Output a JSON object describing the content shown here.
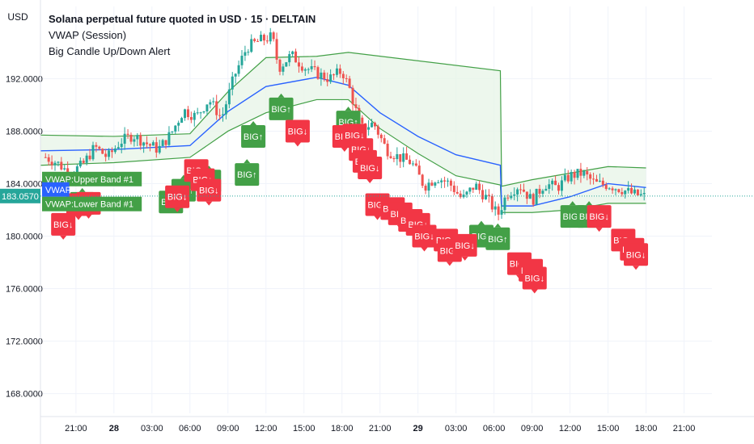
{
  "header": {
    "currency": "USD",
    "title": "Solana perpetual future quoted in USD · 15 · DELTAIN",
    "indicator_1": "VWAP (Session)",
    "indicator_2": "Big Candle Up/Down Alert"
  },
  "colors": {
    "up": "#26a69a",
    "down": "#ef5350",
    "vwap": "#2962ff",
    "band": "#43a047",
    "band_fill": "#e8f5e9",
    "big_up": "#43a047",
    "big_down": "#f23645",
    "grid": "#f0f3fa",
    "price_tag": "#26a69a"
  },
  "labels": {
    "upper_band": "VWAP:Upper Band #1",
    "vwap": "VWAP",
    "lower_band": "VWAP:Lower Band #1",
    "big_up": "BIG↑",
    "big_down": "BIG↓"
  },
  "chart_data": {
    "type": "candlestick",
    "title": "Solana perpetual future quoted in USD · 15 · DELTAIN",
    "ylim": [
      166.5,
      197.5
    ],
    "y_ticks": [
      "192.0000",
      "188.0000",
      "184.0000",
      "180.0000",
      "176.0000",
      "172.0000",
      "168.0000"
    ],
    "x_ticks": [
      "21:00",
      "28",
      "03:00",
      "06:00",
      "09:00",
      "12:00",
      "15:00",
      "18:00",
      "21:00",
      "29",
      "03:00",
      "06:00",
      "09:00",
      "12:00",
      "15:00",
      "18:00",
      "21:00"
    ],
    "x_tick_values": [
      21,
      24,
      27,
      30,
      33,
      36,
      39,
      42,
      45,
      48,
      51,
      54,
      57,
      60,
      63,
      66,
      69
    ],
    "xlim": [
      18.2,
      71.2
    ],
    "last_price": "183.0570",
    "last_price_value": 183.057,
    "close_path": [
      [
        18.2,
        186.2
      ],
      [
        19.5,
        185.6
      ],
      [
        20.5,
        184.8
      ],
      [
        21.5,
        185.4
      ],
      [
        22.5,
        186.8
      ],
      [
        23.5,
        186.0
      ],
      [
        24.5,
        187.2
      ],
      [
        25.5,
        187.7
      ],
      [
        26.5,
        187.1
      ],
      [
        27.5,
        186.6
      ],
      [
        28.5,
        187.8
      ],
      [
        29.5,
        189.6
      ],
      [
        30.5,
        189.1
      ],
      [
        31.5,
        190.4
      ],
      [
        32.5,
        189.0
      ],
      [
        33.5,
        192.2
      ],
      [
        34.5,
        194.4
      ],
      [
        35.5,
        194.9
      ],
      [
        36.5,
        195.2
      ],
      [
        37.0,
        192.8
      ],
      [
        38.0,
        193.8
      ],
      [
        39.0,
        192.9
      ],
      [
        40.0,
        192.4
      ],
      [
        41.0,
        192.0
      ],
      [
        42.0,
        192.6
      ],
      [
        42.6,
        191.2
      ],
      [
        43.5,
        188.2
      ],
      [
        44.5,
        188.6
      ],
      [
        45.5,
        186.6
      ],
      [
        46.5,
        186.0
      ],
      [
        47.5,
        185.6
      ],
      [
        48.5,
        183.8
      ],
      [
        49.5,
        184.5
      ],
      [
        50.5,
        184.0
      ],
      [
        51.5,
        182.8
      ],
      [
        52.5,
        183.9
      ],
      [
        53.5,
        182.8
      ],
      [
        54.3,
        181.6
      ],
      [
        55.0,
        183.2
      ],
      [
        56.0,
        183.9
      ],
      [
        57.0,
        182.7
      ],
      [
        58.0,
        184.0
      ],
      [
        59.0,
        183.7
      ],
      [
        60.0,
        184.6
      ],
      [
        61.0,
        184.8
      ],
      [
        62.0,
        184.0
      ],
      [
        63.0,
        183.9
      ],
      [
        64.0,
        183.6
      ],
      [
        65.0,
        183.2
      ],
      [
        66.0,
        183.0
      ]
    ],
    "vwap": [
      [
        18.2,
        186.5
      ],
      [
        24,
        186.6
      ],
      [
        30,
        186.9
      ],
      [
        33,
        189.5
      ],
      [
        36,
        191.4
      ],
      [
        40,
        192.1
      ],
      [
        42.5,
        191.5
      ],
      [
        45,
        189.4
      ],
      [
        48,
        187.6
      ],
      [
        51,
        186.2
      ],
      [
        54.5,
        185.4
      ],
      [
        54.6,
        182.3
      ],
      [
        57,
        182.3
      ],
      [
        60,
        183.0
      ],
      [
        63,
        184.0
      ],
      [
        66,
        183.7
      ]
    ],
    "upper_band": [
      [
        18.2,
        187.7
      ],
      [
        24,
        187.6
      ],
      [
        30,
        187.8
      ],
      [
        33,
        191.0
      ],
      [
        36,
        193.6
      ],
      [
        40,
        193.7
      ],
      [
        42.5,
        194.0
      ],
      [
        54.5,
        192.6
      ],
      [
        54.6,
        183.8
      ],
      [
        57,
        184.3
      ],
      [
        60,
        184.8
      ],
      [
        63,
        185.3
      ],
      [
        66,
        185.2
      ]
    ],
    "lower_band": [
      [
        18.2,
        185.4
      ],
      [
        24,
        185.6
      ],
      [
        30,
        186.0
      ],
      [
        33,
        188.0
      ],
      [
        36,
        189.4
      ],
      [
        40,
        190.4
      ],
      [
        42.5,
        190.4
      ],
      [
        45,
        188.2
      ],
      [
        48,
        186.3
      ],
      [
        51,
        184.6
      ],
      [
        54.5,
        183.9
      ],
      [
        54.6,
        181.8
      ],
      [
        57,
        181.8
      ],
      [
        60,
        182.0
      ],
      [
        63,
        182.5
      ],
      [
        66,
        182.5
      ]
    ],
    "big_up": [
      [
        21.5,
        182.5
      ],
      [
        28.5,
        182.6
      ],
      [
        29.5,
        183.5
      ],
      [
        31.5,
        184.2
      ],
      [
        34.5,
        184.7
      ],
      [
        35.0,
        187.6
      ],
      [
        37.2,
        189.7
      ],
      [
        42.5,
        188.7
      ],
      [
        53.0,
        180.0
      ],
      [
        54.3,
        179.8
      ],
      [
        60.2,
        181.5
      ],
      [
        61.5,
        181.5
      ]
    ],
    "big_down": [
      [
        20.0,
        180.9
      ],
      [
        21.2,
        182.4
      ],
      [
        22.0,
        182.5
      ],
      [
        29.0,
        183.0
      ],
      [
        30.5,
        185.0
      ],
      [
        31.0,
        184.3
      ],
      [
        31.5,
        183.5
      ],
      [
        38.5,
        188.0
      ],
      [
        42.2,
        187.6
      ],
      [
        43.0,
        187.7
      ],
      [
        43.5,
        186.6
      ],
      [
        43.8,
        185.7
      ],
      [
        44.2,
        185.2
      ],
      [
        44.8,
        182.4
      ],
      [
        46.0,
        182.1
      ],
      [
        46.6,
        181.7
      ],
      [
        47.4,
        181.2
      ],
      [
        48.0,
        180.9
      ],
      [
        48.5,
        180.0
      ],
      [
        50.2,
        179.7
      ],
      [
        50.5,
        178.9
      ],
      [
        51.7,
        179.3
      ],
      [
        56.0,
        177.9
      ],
      [
        56.9,
        177.4
      ],
      [
        57.2,
        176.8
      ],
      [
        62.3,
        181.5
      ],
      [
        64.2,
        179.7
      ],
      [
        64.9,
        179.0
      ],
      [
        65.2,
        178.6
      ]
    ]
  }
}
